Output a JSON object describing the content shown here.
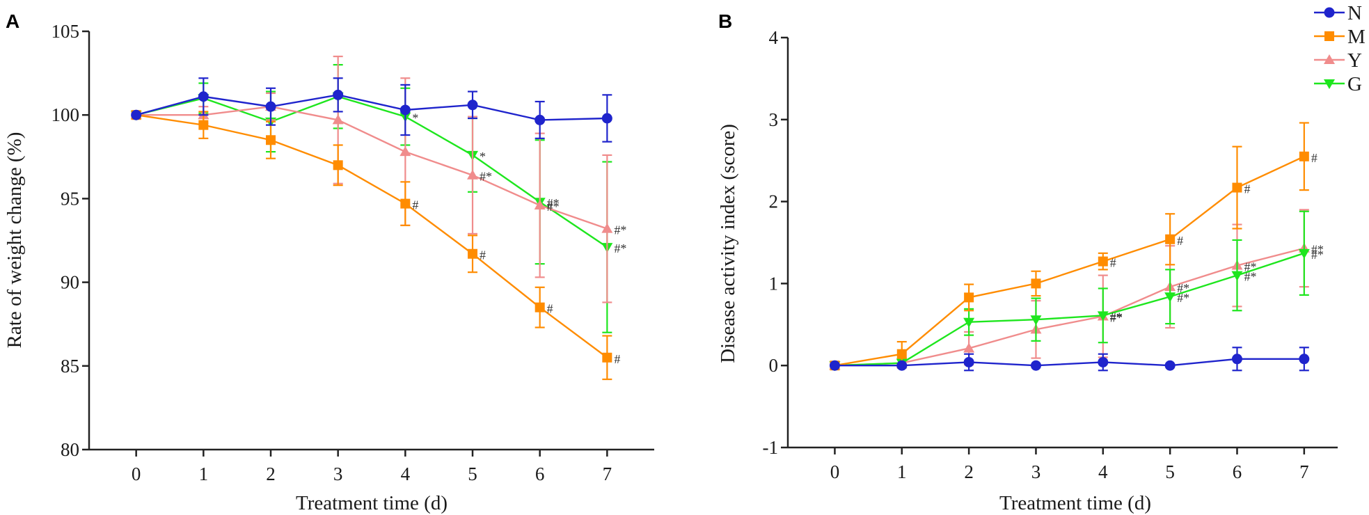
{
  "legend": [
    {
      "name": "N",
      "color": "#1f24cc",
      "marker": "circle"
    },
    {
      "name": "M",
      "color": "#ff8c00",
      "marker": "square"
    },
    {
      "name": "Y",
      "color": "#f08c8c",
      "marker": "triangle-up"
    },
    {
      "name": "G",
      "color": "#1ee61e",
      "marker": "triangle-down"
    }
  ],
  "chart_data": [
    {
      "panel": "A",
      "type": "line",
      "xlabel": "Treatment time (d)",
      "ylabel": "Rate of weight change (%)",
      "x": [
        0,
        1,
        2,
        3,
        4,
        5,
        6,
        7
      ],
      "xlim": [
        -0.7,
        7.7
      ],
      "ylim": [
        80,
        105
      ],
      "yticks": [
        80,
        85,
        90,
        95,
        100,
        105
      ],
      "series": [
        {
          "name": "N",
          "values": [
            100,
            101.1,
            100.5,
            101.2,
            100.3,
            100.6,
            99.7,
            99.8
          ],
          "errors": [
            0,
            1.1,
            1.1,
            1.0,
            1.5,
            0.8,
            1.1,
            1.4
          ],
          "annotations": [
            "",
            "",
            "",
            "",
            "",
            "",
            "",
            ""
          ]
        },
        {
          "name": "M",
          "values": [
            100,
            99.4,
            98.5,
            97.0,
            94.7,
            91.7,
            88.5,
            85.5
          ],
          "errors": [
            0,
            0.8,
            1.1,
            1.2,
            1.3,
            1.1,
            1.2,
            1.3
          ],
          "annotations": [
            "",
            "",
            "",
            "",
            "#",
            "#",
            "#",
            "#"
          ]
        },
        {
          "name": "Y",
          "values": [
            100,
            100.0,
            100.5,
            99.7,
            97.8,
            96.4,
            94.6,
            93.2
          ],
          "errors": [
            0,
            0.5,
            0.8,
            3.8,
            4.4,
            3.5,
            4.3,
            4.4
          ],
          "annotations": [
            "",
            "",
            "",
            "",
            "",
            "#*",
            "#*",
            "#*"
          ]
        },
        {
          "name": "G",
          "values": [
            100,
            101.0,
            99.6,
            101.1,
            99.9,
            97.6,
            94.8,
            92.1
          ],
          "errors": [
            0,
            0.9,
            1.8,
            1.9,
            1.7,
            2.2,
            3.7,
            5.1
          ],
          "annotations": [
            "",
            "",
            "",
            "",
            "*",
            "*",
            "#*",
            "#*"
          ]
        }
      ]
    },
    {
      "panel": "B",
      "type": "line",
      "xlabel": "Treatment time (d)",
      "ylabel": "Disease activity index (score)",
      "x": [
        0,
        1,
        2,
        3,
        4,
        5,
        6,
        7
      ],
      "xlim": [
        -0.7,
        7.5
      ],
      "ylim": [
        -1,
        4
      ],
      "yticks": [
        -1,
        0,
        1,
        2,
        3,
        4
      ],
      "series": [
        {
          "name": "N",
          "values": [
            0,
            0,
            0.04,
            0,
            0.04,
            0,
            0.08,
            0.08
          ],
          "errors": [
            0,
            0,
            0.1,
            0,
            0.1,
            0,
            0.14,
            0.14
          ],
          "annotations": [
            "",
            "",
            "",
            "",
            "",
            "",
            "",
            ""
          ]
        },
        {
          "name": "M",
          "values": [
            0,
            0.14,
            0.83,
            1.0,
            1.27,
            1.54,
            2.17,
            2.55
          ],
          "errors": [
            0,
            0.15,
            0.16,
            0.15,
            0.1,
            0.31,
            0.5,
            0.41
          ],
          "annotations": [
            "",
            "",
            "",
            "",
            "#",
            "#",
            "#",
            "#"
          ]
        },
        {
          "name": "Y",
          "values": [
            0,
            0.03,
            0.21,
            0.44,
            0.6,
            0.96,
            1.22,
            1.43
          ],
          "errors": [
            0,
            0.06,
            0.2,
            0.35,
            0.5,
            0.5,
            0.5,
            0.47
          ],
          "annotations": [
            "",
            "",
            "",
            "",
            "#*",
            "#*",
            "#*",
            "#*"
          ]
        },
        {
          "name": "G",
          "values": [
            0,
            0.03,
            0.53,
            0.56,
            0.61,
            0.84,
            1.1,
            1.37
          ],
          "errors": [
            0,
            0.05,
            0.16,
            0.26,
            0.33,
            0.33,
            0.43,
            0.51
          ],
          "annotations": [
            "",
            "",
            "",
            "",
            "#*",
            "#*",
            "#*",
            "#*"
          ]
        }
      ]
    }
  ]
}
